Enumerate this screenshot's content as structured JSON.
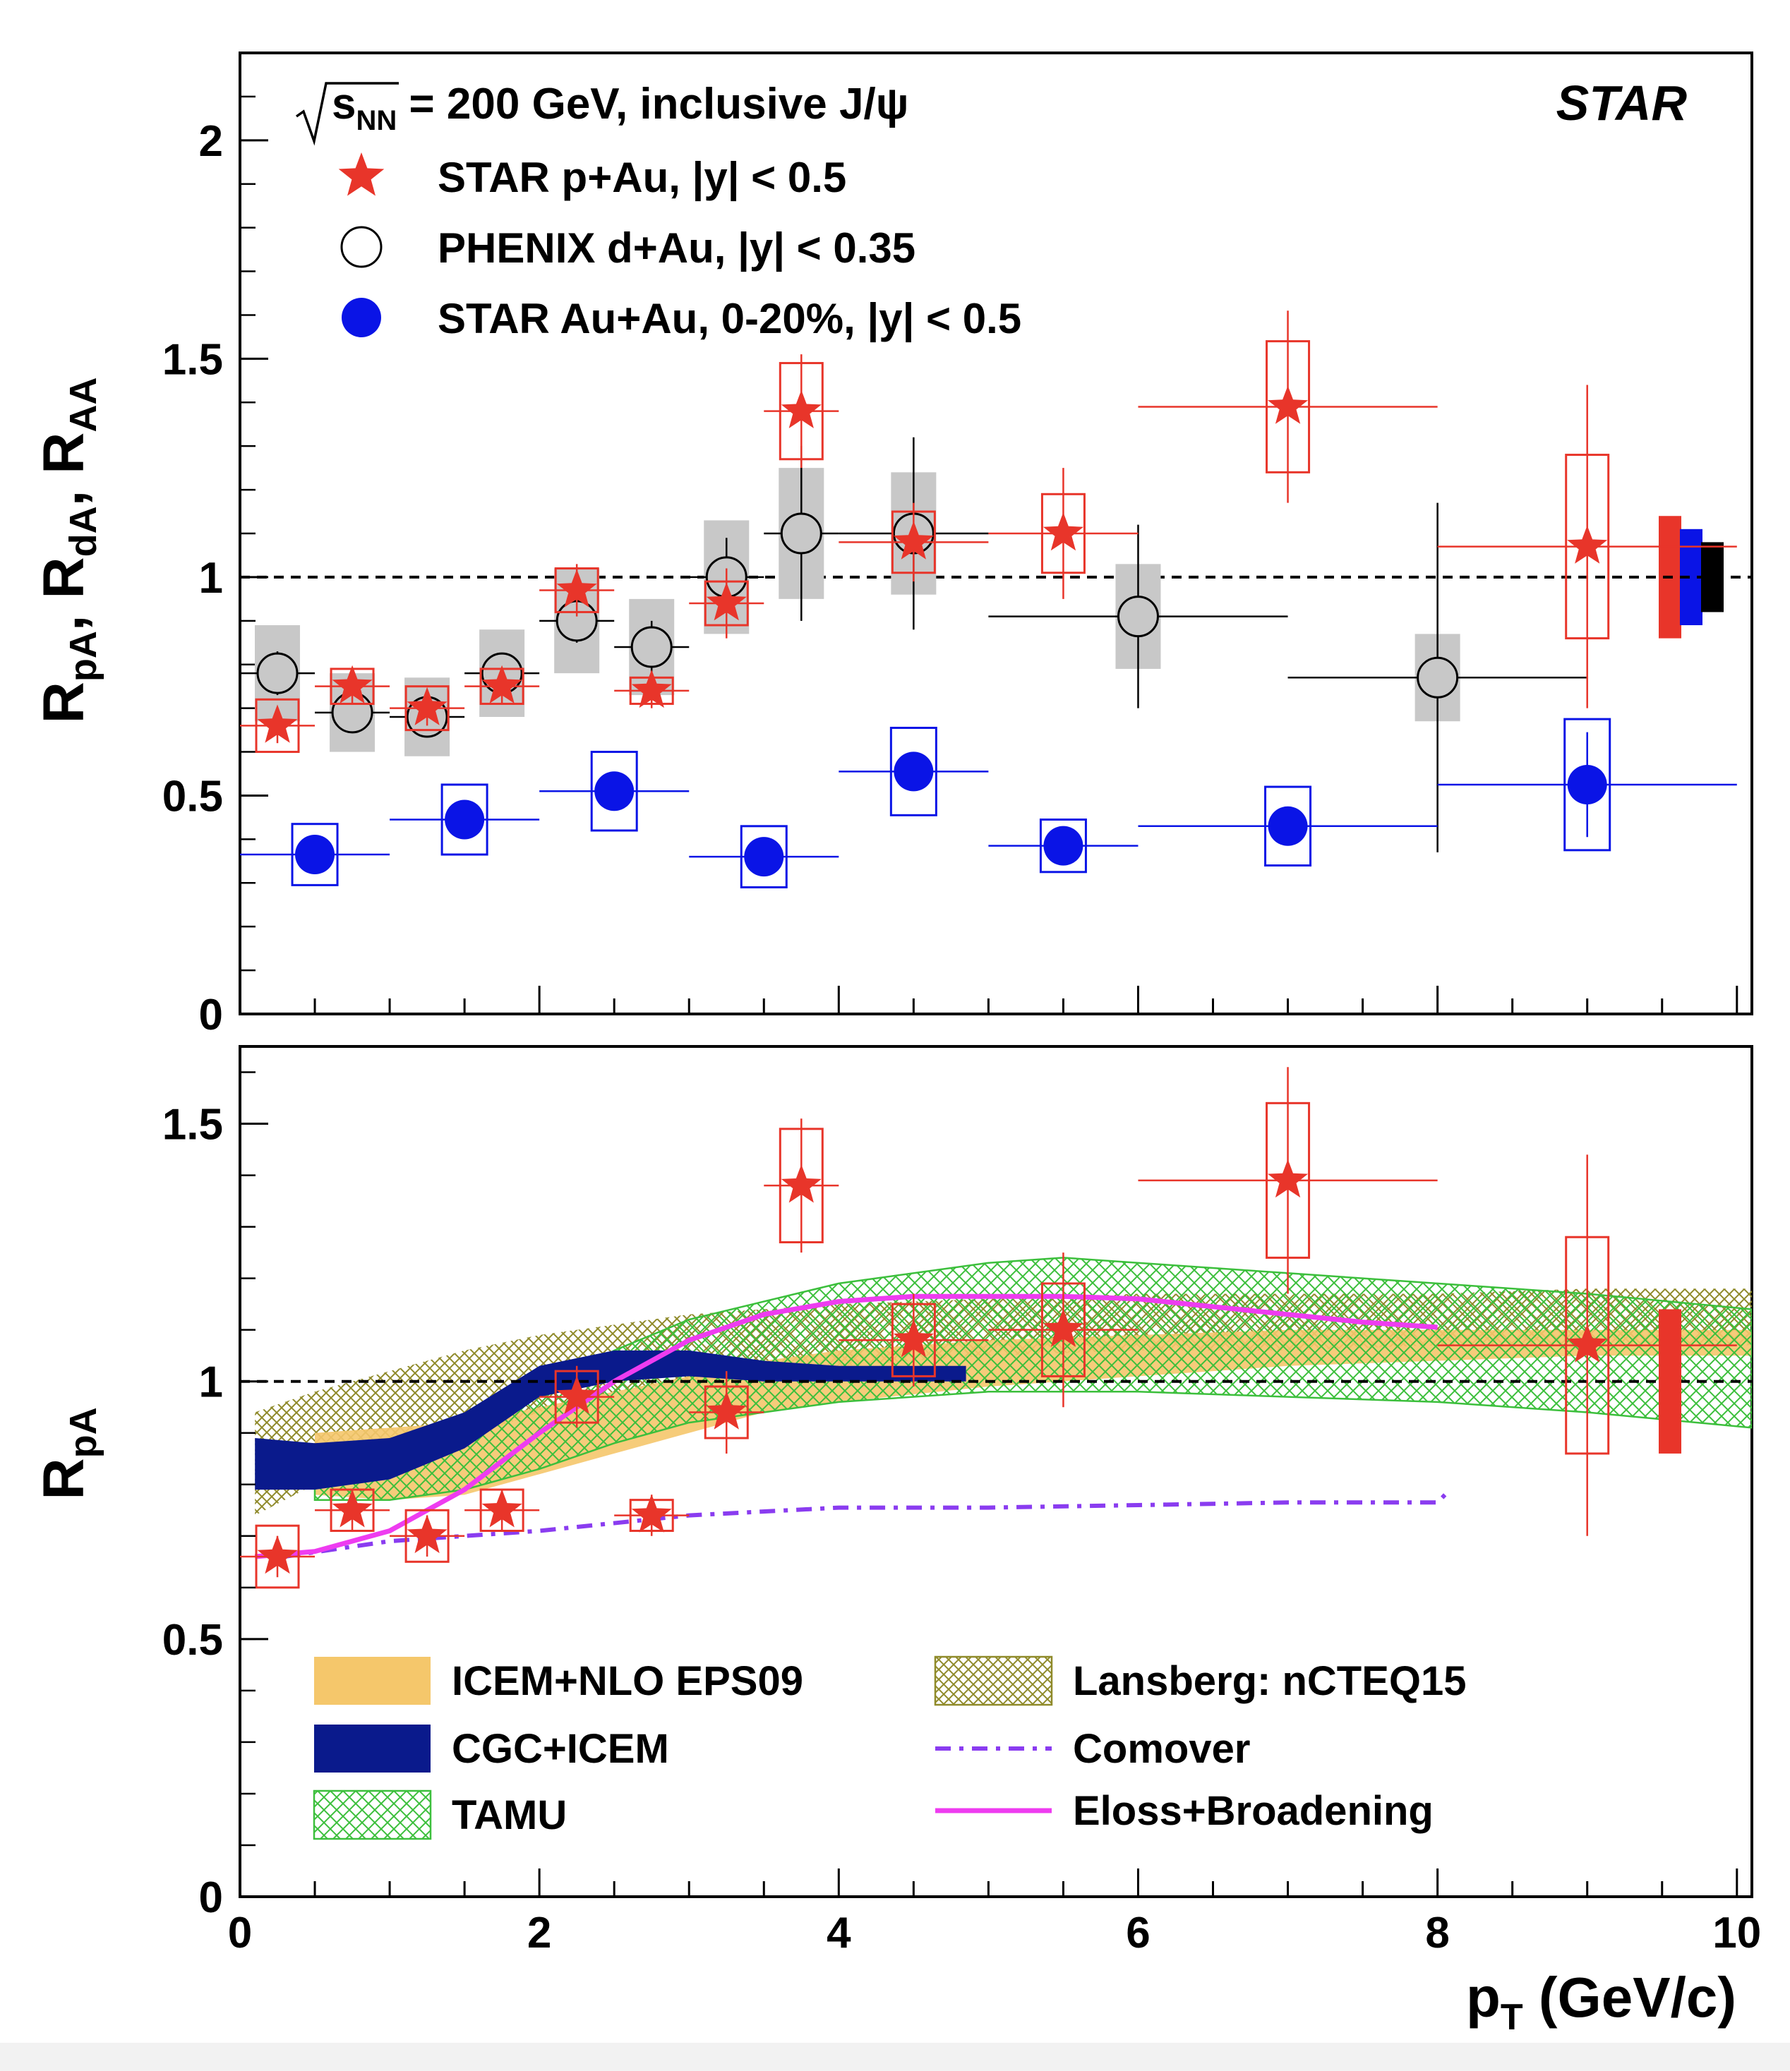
{
  "colors": {
    "star": "#e8352a",
    "phenix_fill": "#c8c8c8",
    "auau": "#0a14e6",
    "icem_eps09": "#f5c76b",
    "cgc_icem": "#0a1a8c",
    "tamu": "#3cbf3c",
    "lansberg": "#8f8a2a",
    "comover": "#8a3cf0",
    "eloss": "#ee3cf0",
    "norm_phenix": "#000000"
  },
  "chart_data": [
    {
      "type": "scatter",
      "panel": "top",
      "ylabel": "R_pA, R_dA, R_AA",
      "xlim": [
        0,
        10.1
      ],
      "ylim": [
        0,
        2.2
      ],
      "yticks": [
        0,
        0.5,
        1,
        1.5,
        2
      ],
      "ytick_labels": [
        "0",
        "0.5",
        "1",
        "1.5",
        "2"
      ],
      "reference_line": 1,
      "experiment_label": "STAR",
      "header": "√s_NN = 200 GeV, inclusive J/ψ",
      "series": [
        {
          "name": "STAR p+Au, |y| < 0.5",
          "marker": "star",
          "points": [
            {
              "x": 0.25,
              "xerr": 0.25,
              "y": 0.66,
              "stat": 0.04,
              "sys": 0.06
            },
            {
              "x": 0.75,
              "xerr": 0.25,
              "y": 0.75,
              "stat": 0.04,
              "sys": 0.04
            },
            {
              "x": 1.25,
              "xerr": 0.25,
              "y": 0.7,
              "stat": 0.04,
              "sys": 0.05
            },
            {
              "x": 1.75,
              "xerr": 0.25,
              "y": 0.75,
              "stat": 0.04,
              "sys": 0.04
            },
            {
              "x": 2.25,
              "xerr": 0.25,
              "y": 0.97,
              "stat": 0.06,
              "sys": 0.05
            },
            {
              "x": 2.75,
              "xerr": 0.25,
              "y": 0.74,
              "stat": 0.04,
              "sys": 0.03
            },
            {
              "x": 3.25,
              "xerr": 0.25,
              "y": 0.94,
              "stat": 0.08,
              "sys": 0.05
            },
            {
              "x": 3.75,
              "xerr": 0.25,
              "y": 1.38,
              "stat": 0.13,
              "sys": 0.11
            },
            {
              "x": 4.5,
              "xerr": 0.5,
              "y": 1.08,
              "stat": 0.09,
              "sys": 0.07
            },
            {
              "x": 5.5,
              "xerr": 0.5,
              "y": 1.1,
              "stat": 0.15,
              "sys": 0.09
            },
            {
              "x": 7.0,
              "xerr": 1.0,
              "y": 1.39,
              "stat": 0.22,
              "sys": 0.15
            },
            {
              "x": 9.0,
              "xerr": 1.0,
              "y": 1.07,
              "stat": 0.37,
              "sys": 0.21
            }
          ]
        },
        {
          "name": "PHENIX d+Au, |y| < 0.35",
          "marker": "open-circle",
          "points": [
            {
              "x": 0.25,
              "xerr": 0.25,
              "y": 0.78,
              "stat": 0.05,
              "sys": 0.11
            },
            {
              "x": 0.75,
              "xerr": 0.25,
              "y": 0.69,
              "stat": 0.04,
              "sys": 0.09
            },
            {
              "x": 1.25,
              "xerr": 0.25,
              "y": 0.68,
              "stat": 0.04,
              "sys": 0.09
            },
            {
              "x": 1.75,
              "xerr": 0.25,
              "y": 0.78,
              "stat": 0.04,
              "sys": 0.1
            },
            {
              "x": 2.25,
              "xerr": 0.25,
              "y": 0.9,
              "stat": 0.05,
              "sys": 0.12
            },
            {
              "x": 2.75,
              "xerr": 0.25,
              "y": 0.84,
              "stat": 0.06,
              "sys": 0.11
            },
            {
              "x": 3.25,
              "xerr": 0.25,
              "y": 1.0,
              "stat": 0.09,
              "sys": 0.13
            },
            {
              "x": 3.75,
              "xerr": 0.25,
              "y": 1.1,
              "stat": 0.2,
              "sys": 0.15
            },
            {
              "x": 4.5,
              "xerr": 0.5,
              "y": 1.1,
              "stat": 0.22,
              "sys": 0.14
            },
            {
              "x": 6.0,
              "xerr": 1.0,
              "y": 0.91,
              "stat": 0.21,
              "sys": 0.12
            },
            {
              "x": 8.0,
              "xerr": 1.0,
              "y": 0.77,
              "stat": 0.4,
              "sys": 0.1
            }
          ]
        },
        {
          "name": "STAR Au+Au, 0-20%, |y| < 0.5",
          "marker": "filled-circle",
          "points": [
            {
              "x": 0.5,
              "xerr": 0.5,
              "y": 0.365,
              "stat": 0.04,
              "sys": 0.07
            },
            {
              "x": 1.5,
              "xerr": 0.5,
              "y": 0.445,
              "stat": 0.03,
              "sys": 0.08
            },
            {
              "x": 2.5,
              "xerr": 0.5,
              "y": 0.51,
              "stat": 0.03,
              "sys": 0.09
            },
            {
              "x": 3.5,
              "xerr": 0.5,
              "y": 0.36,
              "stat": 0.02,
              "sys": 0.07
            },
            {
              "x": 4.5,
              "xerr": 0.5,
              "y": 0.555,
              "stat": 0.04,
              "sys": 0.1
            },
            {
              "x": 5.5,
              "xerr": 0.5,
              "y": 0.385,
              "stat": 0.03,
              "sys": 0.06
            },
            {
              "x": 7.0,
              "xerr": 1.0,
              "y": 0.43,
              "stat": 0.04,
              "sys": 0.09
            },
            {
              "x": 9.0,
              "xerr": 1.0,
              "y": 0.525,
              "stat": 0.12,
              "sys": 0.15
            }
          ]
        }
      ],
      "normalization_boxes": [
        {
          "y_low": 0.86,
          "y_high": 1.14,
          "color_key": "star"
        },
        {
          "y_low": 0.89,
          "y_high": 1.11,
          "color_key": "auau"
        },
        {
          "y_low": 0.92,
          "y_high": 1.08,
          "color_key": "norm_phenix"
        }
      ]
    },
    {
      "type": "line",
      "panel": "bottom",
      "ylabel": "R_pA",
      "xlabel": "p_T (GeV/c)",
      "xlim": [
        0,
        10.1
      ],
      "ylim": [
        0,
        1.65
      ],
      "yticks": [
        0,
        0.5,
        1,
        1.5
      ],
      "ytick_labels": [
        "0",
        "0.5",
        "1",
        "1.5"
      ],
      "xticks": [
        0,
        2,
        4,
        6,
        8,
        10
      ],
      "xtick_labels": [
        "0",
        "2",
        "4",
        "6",
        "8",
        "10"
      ],
      "reference_line": 1,
      "data_series": {
        "name": "STAR p+Au, |y| < 0.5",
        "marker": "star",
        "points": [
          {
            "x": 0.25,
            "xerr": 0.25,
            "y": 0.66,
            "stat": 0.04,
            "sys": 0.06
          },
          {
            "x": 0.75,
            "xerr": 0.25,
            "y": 0.75,
            "stat": 0.04,
            "sys": 0.04
          },
          {
            "x": 1.25,
            "xerr": 0.25,
            "y": 0.7,
            "stat": 0.04,
            "sys": 0.05
          },
          {
            "x": 1.75,
            "xerr": 0.25,
            "y": 0.75,
            "stat": 0.04,
            "sys": 0.04
          },
          {
            "x": 2.25,
            "xerr": 0.25,
            "y": 0.97,
            "stat": 0.06,
            "sys": 0.05
          },
          {
            "x": 2.75,
            "xerr": 0.25,
            "y": 0.74,
            "stat": 0.04,
            "sys": 0.03
          },
          {
            "x": 3.25,
            "xerr": 0.25,
            "y": 0.94,
            "stat": 0.08,
            "sys": 0.05
          },
          {
            "x": 3.75,
            "xerr": 0.25,
            "y": 1.38,
            "stat": 0.13,
            "sys": 0.11
          },
          {
            "x": 4.5,
            "xerr": 0.5,
            "y": 1.08,
            "stat": 0.09,
            "sys": 0.07
          },
          {
            "x": 5.5,
            "xerr": 0.5,
            "y": 1.1,
            "stat": 0.15,
            "sys": 0.09
          },
          {
            "x": 7.0,
            "xerr": 1.0,
            "y": 1.39,
            "stat": 0.22,
            "sys": 0.15
          },
          {
            "x": 9.0,
            "xerr": 1.0,
            "y": 1.07,
            "stat": 0.37,
            "sys": 0.21
          }
        ]
      },
      "norm_box": {
        "y_low": 0.86,
        "y_high": 1.14,
        "color_key": "star"
      },
      "models": [
        {
          "name": "ICEM+NLO EPS09",
          "style": "band",
          "color_key": "icem_eps09",
          "x": [
            0.5,
            1.0,
            1.5,
            2.0,
            2.5,
            3.0,
            3.5,
            4.0,
            5.0,
            6.0,
            7.0,
            8.0,
            9.0,
            10.1
          ],
          "low": [
            0.78,
            0.77,
            0.78,
            0.82,
            0.86,
            0.9,
            0.94,
            0.96,
            0.99,
            1.01,
            1.03,
            1.04,
            1.05,
            1.05
          ],
          "high": [
            0.9,
            0.91,
            0.92,
            0.95,
            0.98,
            1.01,
            1.04,
            1.06,
            1.08,
            1.09,
            1.1,
            1.1,
            1.1,
            1.1
          ]
        },
        {
          "name": "CGC+ICEM",
          "style": "band",
          "color_key": "cgc_icem",
          "x": [
            0.1,
            0.5,
            1.0,
            1.5,
            2.0,
            2.5,
            3.0,
            3.5,
            4.0,
            4.5,
            4.85
          ],
          "low": [
            0.79,
            0.79,
            0.81,
            0.87,
            0.97,
            1.0,
            1.01,
            1.0,
            1.0,
            1.0,
            1.0
          ],
          "high": [
            0.89,
            0.88,
            0.89,
            0.94,
            1.03,
            1.06,
            1.06,
            1.04,
            1.03,
            1.03,
            1.03
          ]
        },
        {
          "name": "TAMU",
          "style": "hatched-band",
          "color_key": "tamu",
          "x": [
            0.5,
            1.0,
            1.5,
            2.0,
            2.5,
            3.0,
            4.0,
            5.0,
            5.5,
            6.0,
            7.0,
            8.0,
            9.0,
            10.1
          ],
          "low": [
            0.77,
            0.77,
            0.79,
            0.83,
            0.88,
            0.92,
            0.96,
            0.98,
            0.98,
            0.98,
            0.97,
            0.96,
            0.94,
            0.91
          ],
          "high": [
            0.84,
            0.86,
            0.91,
            0.98,
            1.06,
            1.12,
            1.19,
            1.23,
            1.24,
            1.23,
            1.21,
            1.19,
            1.17,
            1.14
          ]
        },
        {
          "name": "Lansberg: nCTEQ15",
          "style": "hatched-band",
          "color_key": "lansberg",
          "x": [
            0.1,
            0.5,
            1.0,
            1.5,
            2.0,
            2.5,
            3.0,
            4.0,
            5.0,
            6.0,
            7.0,
            8.0,
            9.0,
            10.1
          ],
          "low": [
            0.74,
            0.8,
            0.84,
            0.89,
            0.94,
            0.98,
            1.0,
            1.03,
            1.05,
            1.06,
            1.06,
            1.07,
            1.07,
            1.07
          ],
          "high": [
            0.94,
            0.98,
            1.02,
            1.06,
            1.09,
            1.11,
            1.13,
            1.15,
            1.16,
            1.17,
            1.17,
            1.17,
            1.18,
            1.18
          ]
        },
        {
          "name": "Comover",
          "style": "dashdot",
          "color_key": "comover",
          "x": [
            0.3,
            1.0,
            2.0,
            3.0,
            4.0,
            5.0,
            6.0,
            7.0,
            8.0,
            8.05
          ],
          "y": [
            0.66,
            0.69,
            0.71,
            0.74,
            0.755,
            0.755,
            0.76,
            0.765,
            0.765,
            0.78
          ]
        },
        {
          "name": "Eloss+Broadening",
          "style": "line",
          "color_key": "eloss",
          "x": [
            0.1,
            0.5,
            1.0,
            1.5,
            2.0,
            2.5,
            3.0,
            3.5,
            4.0,
            4.5,
            5.0,
            5.5,
            6.0,
            6.5,
            7.0,
            7.5,
            8.0
          ],
          "y": [
            0.66,
            0.67,
            0.71,
            0.79,
            0.9,
            1.0,
            1.08,
            1.13,
            1.155,
            1.165,
            1.165,
            1.165,
            1.16,
            1.145,
            1.13,
            1.115,
            1.105
          ]
        }
      ]
    }
  ]
}
